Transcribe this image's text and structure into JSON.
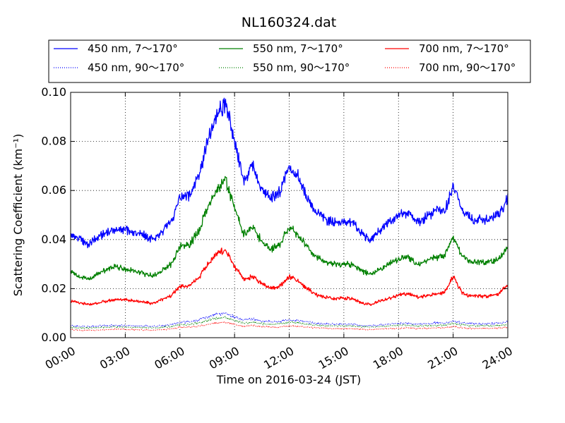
{
  "chart_data": {
    "type": "line",
    "title": "NL160324.dat",
    "xlabel": "Time on 2016-03-24 (JST)",
    "ylabel": "Scattering Coefficient (km⁻¹)",
    "x_unit": "hours",
    "xlim": [
      0,
      24
    ],
    "ylim": [
      0,
      0.1
    ],
    "xtick_values": [
      0,
      3,
      6,
      9,
      12,
      15,
      18,
      21,
      24
    ],
    "xtick_labels": [
      "00:00",
      "03:00",
      "06:00",
      "09:00",
      "12:00",
      "15:00",
      "18:00",
      "21:00",
      "24:00"
    ],
    "ytick_values": [
      0,
      0.02,
      0.04,
      0.06,
      0.08,
      0.1
    ],
    "ytick_labels": [
      "0.00",
      "0.02",
      "0.04",
      "0.06",
      "0.08",
      "0.10"
    ],
    "grid": true,
    "legend_position": "top",
    "x": [
      0,
      0.5,
      1,
      1.5,
      2,
      2.5,
      3,
      3.5,
      4,
      4.5,
      5,
      5.5,
      6,
      6.5,
      7,
      7.5,
      8,
      8.5,
      9,
      9.5,
      10,
      10.5,
      11,
      11.5,
      12,
      12.5,
      13,
      13.5,
      14,
      14.5,
      15,
      15.5,
      16,
      16.5,
      17,
      17.5,
      18,
      18.5,
      19,
      19.5,
      20,
      20.5,
      21,
      21.5,
      22,
      22.5,
      23,
      23.5,
      24
    ],
    "series": [
      {
        "name": "450 nm, 7～170°",
        "color": "#0000ff",
        "style": "solid",
        "values": [
          0.042,
          0.04,
          0.038,
          0.041,
          0.043,
          0.044,
          0.044,
          0.043,
          0.042,
          0.04,
          0.043,
          0.047,
          0.057,
          0.058,
          0.065,
          0.08,
          0.09,
          0.095,
          0.08,
          0.064,
          0.07,
          0.06,
          0.057,
          0.059,
          0.07,
          0.066,
          0.057,
          0.051,
          0.048,
          0.047,
          0.047,
          0.047,
          0.042,
          0.04,
          0.044,
          0.047,
          0.05,
          0.051,
          0.047,
          0.049,
          0.052,
          0.051,
          0.062,
          0.052,
          0.048,
          0.048,
          0.048,
          0.05,
          0.057
        ]
      },
      {
        "name": "450 nm, 90～170°",
        "color": "#0000ff",
        "style": "dotted",
        "values": [
          0.005,
          0.0045,
          0.0045,
          0.0047,
          0.0049,
          0.005,
          0.005,
          0.0049,
          0.0048,
          0.0046,
          0.0049,
          0.0053,
          0.0062,
          0.0064,
          0.0072,
          0.0085,
          0.0095,
          0.01,
          0.0085,
          0.0072,
          0.0075,
          0.0068,
          0.0065,
          0.0066,
          0.0073,
          0.007,
          0.0064,
          0.0059,
          0.0056,
          0.0055,
          0.0055,
          0.0055,
          0.005,
          0.0049,
          0.0052,
          0.0055,
          0.0058,
          0.0059,
          0.0055,
          0.0057,
          0.006,
          0.0059,
          0.0068,
          0.006,
          0.0057,
          0.0057,
          0.0057,
          0.0059,
          0.0064
        ]
      },
      {
        "name": "550 nm, 7～170°",
        "color": "#008000",
        "style": "solid",
        "values": [
          0.027,
          0.025,
          0.024,
          0.026,
          0.028,
          0.029,
          0.028,
          0.027,
          0.026,
          0.025,
          0.027,
          0.03,
          0.037,
          0.038,
          0.043,
          0.053,
          0.06,
          0.064,
          0.053,
          0.042,
          0.045,
          0.039,
          0.036,
          0.038,
          0.045,
          0.042,
          0.037,
          0.033,
          0.031,
          0.03,
          0.03,
          0.03,
          0.027,
          0.026,
          0.028,
          0.03,
          0.032,
          0.033,
          0.03,
          0.031,
          0.033,
          0.033,
          0.041,
          0.033,
          0.031,
          0.031,
          0.031,
          0.032,
          0.037
        ]
      },
      {
        "name": "550 nm, 90～170°",
        "color": "#008000",
        "style": "dotted",
        "values": [
          0.0043,
          0.004,
          0.0039,
          0.0041,
          0.0043,
          0.0044,
          0.0043,
          0.0042,
          0.0041,
          0.004,
          0.0042,
          0.0046,
          0.0053,
          0.0054,
          0.006,
          0.0071,
          0.0079,
          0.0083,
          0.0071,
          0.006,
          0.0063,
          0.0057,
          0.0054,
          0.0056,
          0.0063,
          0.006,
          0.0055,
          0.0051,
          0.0049,
          0.0048,
          0.0048,
          0.0048,
          0.0044,
          0.0043,
          0.0045,
          0.0048,
          0.005,
          0.0051,
          0.0048,
          0.0049,
          0.0051,
          0.0051,
          0.0059,
          0.0051,
          0.0049,
          0.0049,
          0.0049,
          0.005,
          0.0055
        ]
      },
      {
        "name": "700 nm, 7～170°",
        "color": "#ff0000",
        "style": "solid",
        "values": [
          0.015,
          0.014,
          0.0135,
          0.014,
          0.015,
          0.0155,
          0.0155,
          0.015,
          0.0145,
          0.014,
          0.0155,
          0.017,
          0.021,
          0.021,
          0.024,
          0.03,
          0.034,
          0.036,
          0.029,
          0.024,
          0.025,
          0.022,
          0.02,
          0.021,
          0.025,
          0.023,
          0.02,
          0.0175,
          0.0165,
          0.016,
          0.016,
          0.016,
          0.014,
          0.0135,
          0.015,
          0.016,
          0.0175,
          0.018,
          0.0165,
          0.017,
          0.018,
          0.018,
          0.025,
          0.018,
          0.017,
          0.017,
          0.017,
          0.018,
          0.021
        ]
      },
      {
        "name": "700 nm, 90～170°",
        "color": "#ff0000",
        "style": "dotted",
        "values": [
          0.0033,
          0.003,
          0.003,
          0.0031,
          0.0033,
          0.0034,
          0.0034,
          0.0033,
          0.0032,
          0.0031,
          0.0033,
          0.0036,
          0.0042,
          0.0043,
          0.0047,
          0.0054,
          0.006,
          0.0062,
          0.0054,
          0.0047,
          0.0049,
          0.0045,
          0.0043,
          0.0044,
          0.0048,
          0.0046,
          0.0043,
          0.004,
          0.0038,
          0.0037,
          0.0037,
          0.0037,
          0.0034,
          0.0033,
          0.0035,
          0.0037,
          0.0039,
          0.004,
          0.0037,
          0.0038,
          0.004,
          0.004,
          0.0046,
          0.004,
          0.0038,
          0.0038,
          0.0038,
          0.0039,
          0.0043
        ]
      }
    ]
  }
}
